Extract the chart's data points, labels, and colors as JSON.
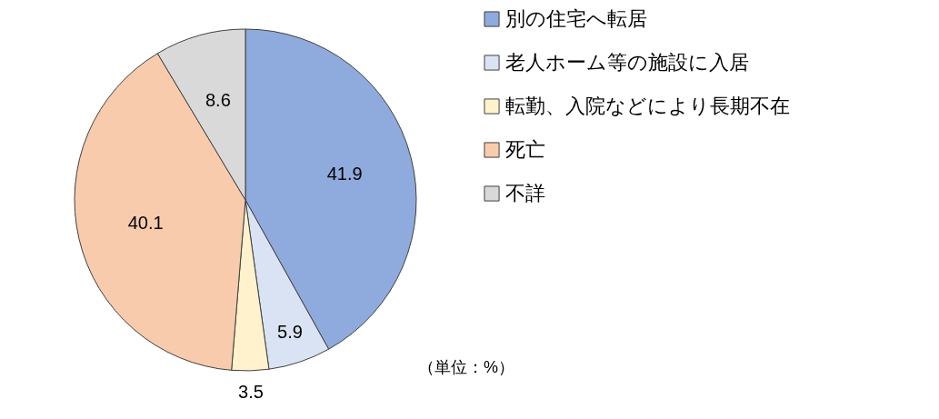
{
  "chart_data": {
    "type": "pie",
    "categories": [
      "別の住宅へ転居",
      "老人ホーム等の施設に入居",
      "転勤、入院などにより長期不在",
      "死亡",
      "不詳"
    ],
    "values": [
      41.9,
      5.9,
      3.5,
      40.1,
      8.6
    ],
    "colors": [
      "#8faadc",
      "#dae3f3",
      "#fff2cc",
      "#f8cbad",
      "#d9d9d9"
    ],
    "data_labels": true,
    "legend": "right",
    "annotations": [
      "（単位：%）"
    ]
  }
}
